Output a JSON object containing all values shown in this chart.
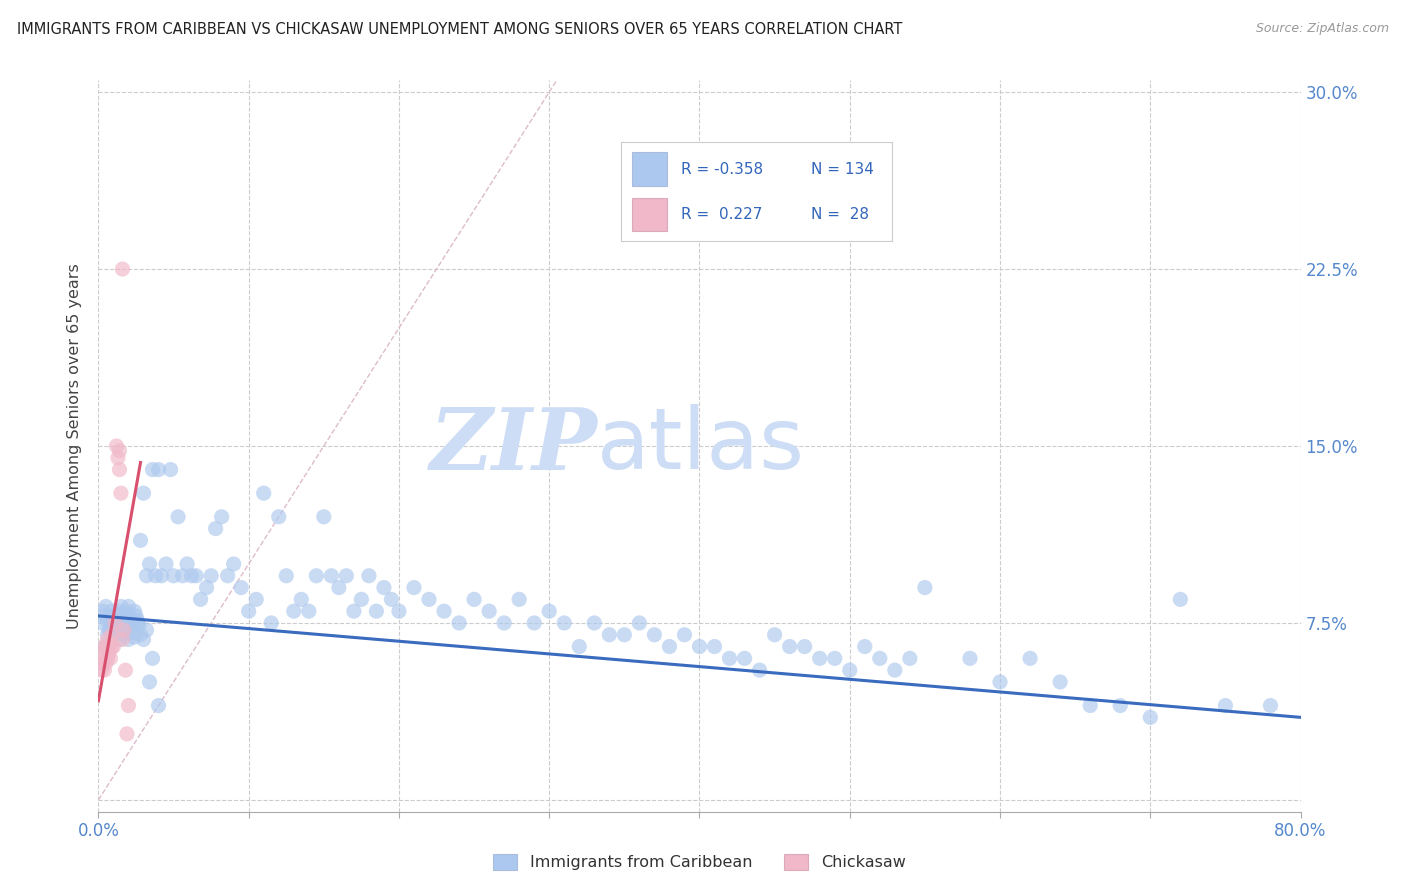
{
  "title": "IMMIGRANTS FROM CARIBBEAN VS CHICKASAW UNEMPLOYMENT AMONG SENIORS OVER 65 YEARS CORRELATION CHART",
  "source": "Source: ZipAtlas.com",
  "ylabel": "Unemployment Among Seniors over 65 years",
  "legend_label_blue": "Immigrants from Caribbean",
  "legend_label_pink": "Chickasaw",
  "blue_R": -0.358,
  "blue_N": 134,
  "pink_R": 0.227,
  "pink_N": 28,
  "xlim": [
    0,
    0.8
  ],
  "ylim": [
    -0.005,
    0.305
  ],
  "blue_color": "#adc8ee",
  "blue_line_color": "#3a6bbf",
  "pink_color": "#f0b8c8",
  "pink_line_color": "#d94f6e",
  "scatter_size": 120,
  "scatter_alpha": 0.65,
  "blue_trend_x": [
    0.0,
    0.8
  ],
  "blue_trend_y": [
    0.078,
    0.035
  ],
  "pink_trend_x": [
    0.0,
    0.028
  ],
  "pink_trend_y": [
    0.042,
    0.143
  ],
  "ref_line_x": [
    0.0,
    0.305
  ],
  "ref_line_y": [
    0.0,
    0.305
  ],
  "watermark_zip": "ZIP",
  "watermark_atlas": "atlas",
  "watermark_color": "#ccddf5",
  "blue_x": [
    0.002,
    0.003,
    0.004,
    0.005,
    0.006,
    0.007,
    0.008,
    0.009,
    0.01,
    0.011,
    0.012,
    0.013,
    0.014,
    0.015,
    0.016,
    0.017,
    0.018,
    0.019,
    0.02,
    0.021,
    0.022,
    0.023,
    0.024,
    0.025,
    0.026,
    0.027,
    0.028,
    0.03,
    0.032,
    0.034,
    0.036,
    0.038,
    0.04,
    0.042,
    0.045,
    0.048,
    0.05,
    0.053,
    0.056,
    0.059,
    0.062,
    0.065,
    0.068,
    0.072,
    0.075,
    0.078,
    0.082,
    0.086,
    0.09,
    0.095,
    0.1,
    0.105,
    0.11,
    0.115,
    0.12,
    0.125,
    0.13,
    0.135,
    0.14,
    0.145,
    0.15,
    0.155,
    0.16,
    0.165,
    0.17,
    0.175,
    0.18,
    0.185,
    0.19,
    0.195,
    0.2,
    0.21,
    0.22,
    0.23,
    0.24,
    0.25,
    0.26,
    0.27,
    0.28,
    0.29,
    0.3,
    0.31,
    0.32,
    0.33,
    0.34,
    0.35,
    0.36,
    0.37,
    0.38,
    0.39,
    0.4,
    0.41,
    0.42,
    0.43,
    0.44,
    0.45,
    0.46,
    0.47,
    0.48,
    0.49,
    0.5,
    0.51,
    0.52,
    0.53,
    0.54,
    0.55,
    0.58,
    0.6,
    0.62,
    0.64,
    0.66,
    0.68,
    0.7,
    0.72,
    0.75,
    0.78,
    0.004,
    0.006,
    0.008,
    0.01,
    0.012,
    0.014,
    0.016,
    0.018,
    0.02,
    0.022,
    0.024,
    0.026,
    0.028,
    0.03,
    0.032,
    0.034,
    0.036,
    0.04
  ],
  "blue_y": [
    0.075,
    0.08,
    0.078,
    0.082,
    0.076,
    0.072,
    0.078,
    0.08,
    0.074,
    0.076,
    0.078,
    0.075,
    0.08,
    0.082,
    0.079,
    0.076,
    0.075,
    0.08,
    0.082,
    0.078,
    0.074,
    0.076,
    0.08,
    0.078,
    0.076,
    0.074,
    0.11,
    0.13,
    0.095,
    0.1,
    0.14,
    0.095,
    0.14,
    0.095,
    0.1,
    0.14,
    0.095,
    0.12,
    0.095,
    0.1,
    0.095,
    0.095,
    0.085,
    0.09,
    0.095,
    0.115,
    0.12,
    0.095,
    0.1,
    0.09,
    0.08,
    0.085,
    0.13,
    0.075,
    0.12,
    0.095,
    0.08,
    0.085,
    0.08,
    0.095,
    0.12,
    0.095,
    0.09,
    0.095,
    0.08,
    0.085,
    0.095,
    0.08,
    0.09,
    0.085,
    0.08,
    0.09,
    0.085,
    0.08,
    0.075,
    0.085,
    0.08,
    0.075,
    0.085,
    0.075,
    0.08,
    0.075,
    0.065,
    0.075,
    0.07,
    0.07,
    0.075,
    0.07,
    0.065,
    0.07,
    0.065,
    0.065,
    0.06,
    0.06,
    0.055,
    0.07,
    0.065,
    0.065,
    0.06,
    0.06,
    0.055,
    0.065,
    0.06,
    0.055,
    0.06,
    0.09,
    0.06,
    0.05,
    0.06,
    0.05,
    0.04,
    0.04,
    0.035,
    0.085,
    0.04,
    0.04,
    0.065,
    0.07,
    0.072,
    0.075,
    0.073,
    0.068,
    0.07,
    0.072,
    0.068,
    0.071,
    0.069,
    0.075,
    0.07,
    0.068,
    0.072,
    0.05,
    0.06,
    0.04
  ],
  "pink_x": [
    0.001,
    0.002,
    0.003,
    0.003,
    0.004,
    0.004,
    0.005,
    0.005,
    0.006,
    0.006,
    0.007,
    0.008,
    0.008,
    0.009,
    0.009,
    0.01,
    0.011,
    0.012,
    0.013,
    0.014,
    0.014,
    0.015,
    0.016,
    0.016,
    0.017,
    0.018,
    0.019,
    0.02
  ],
  "pink_y": [
    0.06,
    0.055,
    0.058,
    0.062,
    0.055,
    0.065,
    0.058,
    0.065,
    0.06,
    0.068,
    0.062,
    0.066,
    0.06,
    0.065,
    0.07,
    0.065,
    0.075,
    0.15,
    0.145,
    0.148,
    0.14,
    0.13,
    0.225,
    0.068,
    0.072,
    0.055,
    0.028,
    0.04
  ]
}
